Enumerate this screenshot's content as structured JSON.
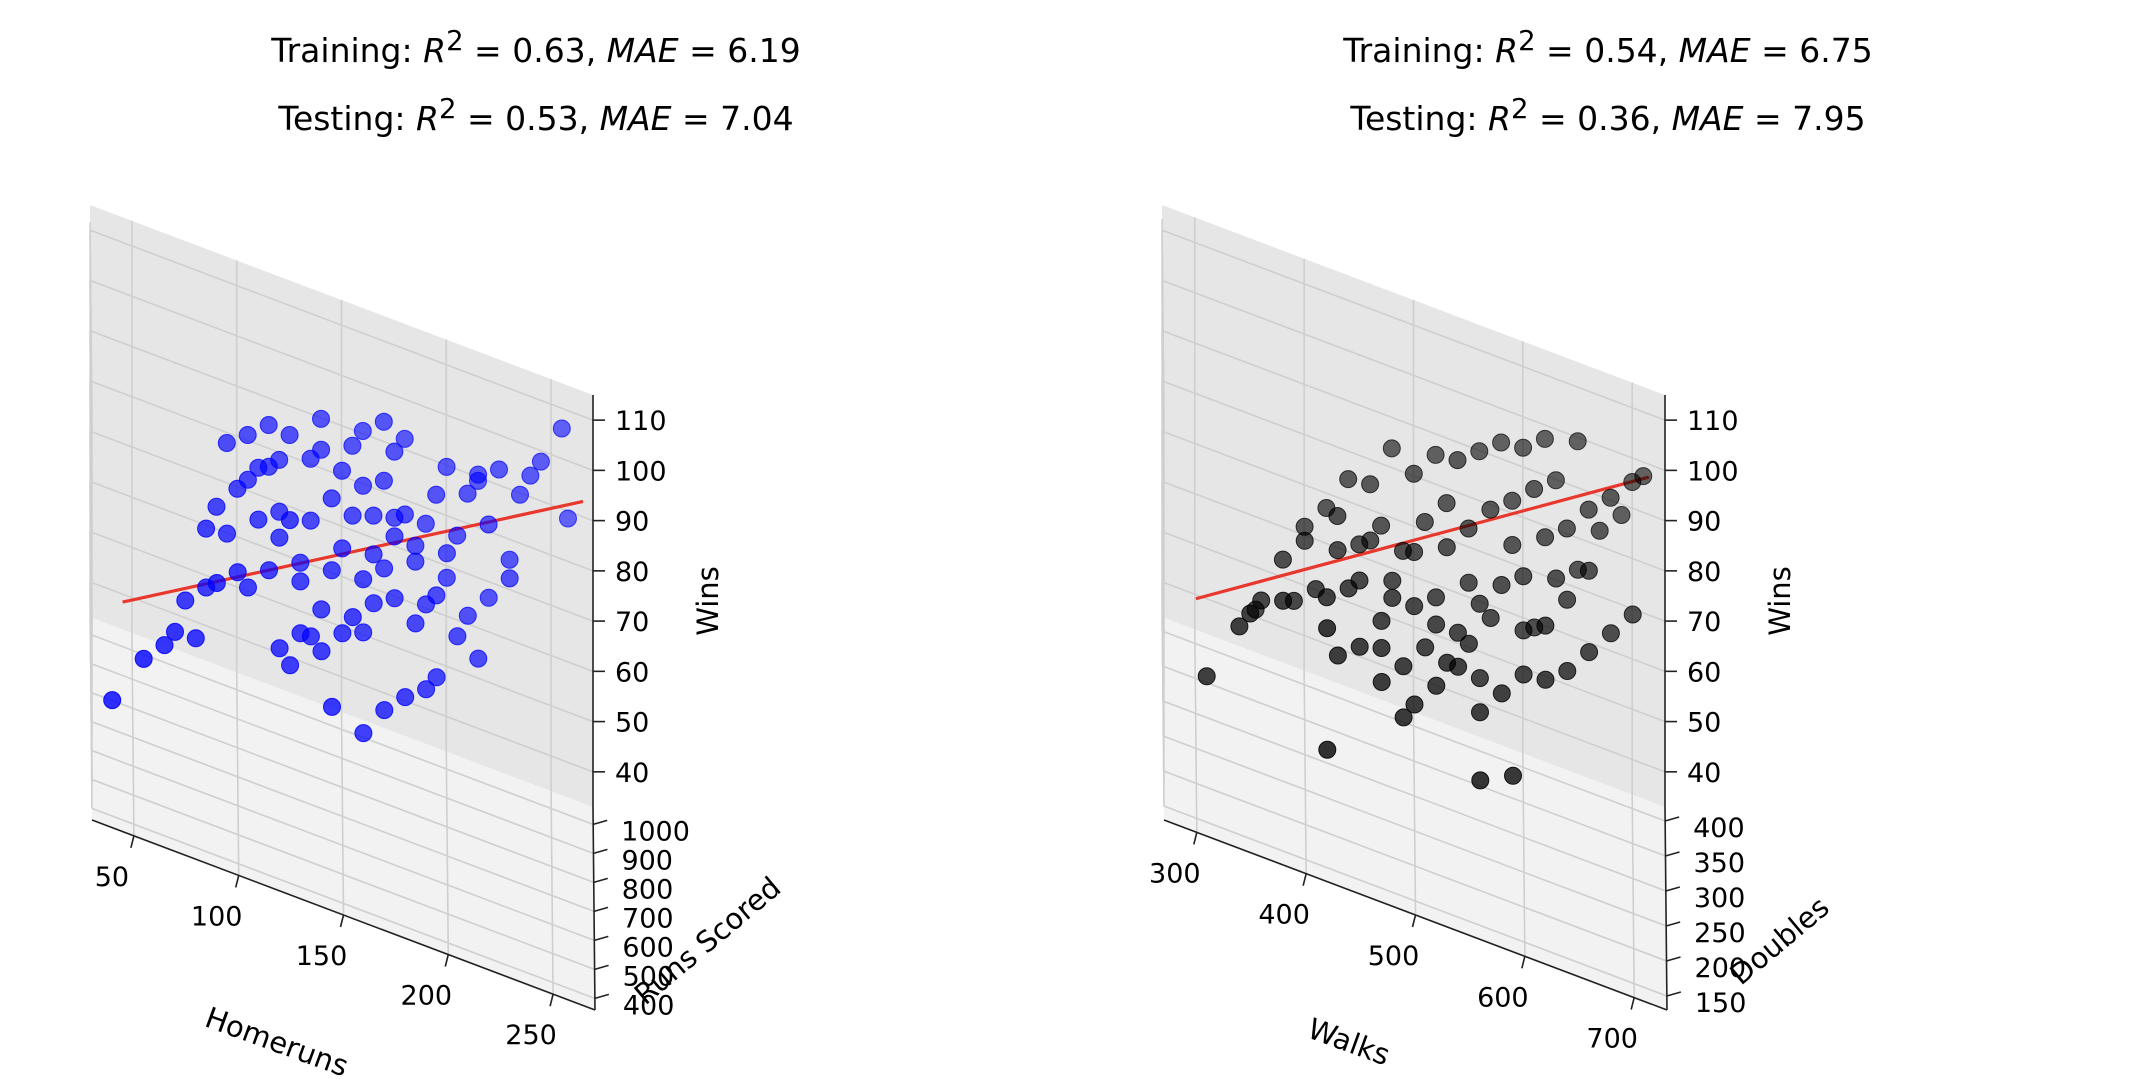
{
  "chart_data": [
    {
      "type": "scatter",
      "subtype": "3d-scatter-with-fitted-line",
      "title": {
        "training": {
          "prefix": "Training: ",
          "r2": "0.63",
          "mae": "6.19"
        },
        "testing": {
          "prefix": "Testing: ",
          "r2": "0.53",
          "mae": "7.04"
        }
      },
      "xlabel": "Homeruns",
      "ylabel": "Runs Scored",
      "zlabel": "Wins",
      "xlim": [
        30,
        270
      ],
      "ylim": [
        360,
        1060
      ],
      "zlim": [
        33,
        115
      ],
      "xticks": [
        "50",
        "100",
        "150",
        "200",
        "250"
      ],
      "yticks": [
        "400",
        "500",
        "600",
        "700",
        "800",
        "900",
        "1000"
      ],
      "zticks": [
        "40",
        "50",
        "60",
        "70",
        "80",
        "90",
        "100",
        "110"
      ],
      "grid": true,
      "marker_color": "#0000ff",
      "line_color": "#e8372c",
      "pane_color": "#f2f2f2",
      "fit_line": {
        "start": [
          45,
          650,
          62
        ],
        "end": [
          265,
          870,
          104
        ]
      },
      "points": [
        [
          40,
          610,
          44
        ],
        [
          55,
          620,
          54
        ],
        [
          65,
          660,
          56
        ],
        [
          70,
          650,
          60
        ],
        [
          80,
          690,
          58
        ],
        [
          75,
          720,
          63
        ],
        [
          90,
          700,
          70
        ],
        [
          85,
          740,
          66
        ],
        [
          100,
          730,
          72
        ],
        [
          95,
          780,
          76
        ],
        [
          105,
          760,
          68
        ],
        [
          110,
          800,
          80
        ],
        [
          115,
          760,
          73
        ],
        [
          120,
          800,
          78
        ],
        [
          125,
          770,
          84
        ],
        [
          130,
          810,
          74
        ],
        [
          105,
          820,
          86
        ],
        [
          115,
          840,
          89
        ],
        [
          120,
          860,
          90
        ],
        [
          135,
          830,
          82
        ],
        [
          140,
          780,
          68
        ],
        [
          145,
          790,
          76
        ],
        [
          150,
          810,
          80
        ],
        [
          155,
          760,
          70
        ],
        [
          160,
          790,
          66
        ],
        [
          165,
          800,
          72
        ],
        [
          170,
          830,
          78
        ],
        [
          175,
          850,
          84
        ],
        [
          140,
          880,
          94
        ],
        [
          150,
          870,
          92
        ],
        [
          155,
          900,
          96
        ],
        [
          160,
          880,
          90
        ],
        [
          165,
          860,
          86
        ],
        [
          170,
          890,
          92
        ],
        [
          175,
          900,
          98
        ],
        [
          180,
          870,
          88
        ],
        [
          185,
          880,
          82
        ],
        [
          190,
          900,
          86
        ],
        [
          195,
          910,
          92
        ],
        [
          200,
          880,
          78
        ],
        [
          205,
          900,
          86
        ],
        [
          210,
          920,
          94
        ],
        [
          215,
          930,
          98
        ],
        [
          220,
          910,
          90
        ],
        [
          225,
          940,
          100
        ],
        [
          230,
          920,
          84
        ],
        [
          235,
          950,
          96
        ],
        [
          240,
          960,
          100
        ],
        [
          245,
          970,
          103
        ],
        [
          255,
          990,
          110
        ],
        [
          258,
          1000,
          92
        ],
        [
          120,
          730,
          60
        ],
        [
          130,
          740,
          64
        ],
        [
          125,
          720,
          58
        ],
        [
          135,
          760,
          63
        ],
        [
          145,
          700,
          54
        ],
        [
          160,
          720,
          50
        ],
        [
          170,
          740,
          55
        ],
        [
          180,
          760,
          58
        ],
        [
          190,
          780,
          60
        ],
        [
          195,
          800,
          62
        ],
        [
          185,
          820,
          70
        ],
        [
          175,
          810,
          74
        ],
        [
          165,
          830,
          80
        ],
        [
          155,
          850,
          85
        ],
        [
          145,
          830,
          88
        ],
        [
          135,
          870,
          92
        ],
        [
          125,
          890,
          94
        ],
        [
          140,
          900,
          99
        ],
        [
          160,
          930,
          98
        ],
        [
          180,
          940,
          99
        ],
        [
          200,
          950,
          96
        ],
        [
          215,
          960,
          95
        ],
        [
          210,
          880,
          72
        ],
        [
          220,
          900,
          76
        ],
        [
          230,
          890,
          82
        ],
        [
          215,
          850,
          66
        ],
        [
          205,
          830,
          70
        ],
        [
          195,
          840,
          76
        ],
        [
          185,
          860,
          80
        ],
        [
          175,
          880,
          86
        ],
        [
          200,
          860,
          84
        ],
        [
          190,
          830,
          74
        ],
        [
          150,
          760,
          66
        ],
        [
          140,
          740,
          62
        ],
        [
          130,
          780,
          72
        ],
        [
          120,
          820,
          82
        ],
        [
          110,
          840,
          88
        ],
        [
          100,
          810,
          84
        ],
        [
          90,
          790,
          80
        ],
        [
          85,
          770,
          76
        ],
        [
          95,
          850,
          90
        ],
        [
          105,
          870,
          92
        ],
        [
          115,
          880,
          95
        ],
        [
          170,
          920,
          102
        ],
        [
          160,
          800,
          76
        ]
      ]
    },
    {
      "type": "scatter",
      "subtype": "3d-scatter-with-fitted-line",
      "title": {
        "training": {
          "prefix": "Training: ",
          "r2": "0.54",
          "mae": "6.75"
        },
        "testing": {
          "prefix": "Testing: ",
          "r2": "0.36",
          "mae": "7.95"
        }
      },
      "xlabel": "Walks",
      "ylabel": "Doubles",
      "zlabel": "Wins",
      "xlim": [
        270,
        730
      ],
      "ylim": [
        130,
        420
      ],
      "zlim": [
        33,
        115
      ],
      "xticks": [
        "300",
        "400",
        "500",
        "600",
        "700"
      ],
      "yticks": [
        "150",
        "200",
        "250",
        "300",
        "350",
        "400"
      ],
      "zticks": [
        "40",
        "50",
        "60",
        "70",
        "80",
        "90",
        "100",
        "110"
      ],
      "grid": true,
      "marker_color": "#000000",
      "line_color": "#e8372c",
      "pane_color": "#f2f2f2",
      "fit_line": {
        "start": [
          300,
          270,
          60
        ],
        "end": [
          715,
          380,
          103
        ]
      },
      "points": [
        [
          310,
          280,
          44
        ],
        [
          340,
          290,
          55
        ],
        [
          350,
          300,
          57
        ],
        [
          360,
          310,
          59
        ],
        [
          355,
          330,
          54
        ],
        [
          390,
          320,
          60
        ],
        [
          420,
          300,
          66
        ],
        [
          440,
          310,
          68
        ],
        [
          430,
          330,
          72
        ],
        [
          450,
          320,
          69
        ],
        [
          470,
          310,
          64
        ],
        [
          460,
          340,
          75
        ],
        [
          480,
          330,
          70
        ],
        [
          500,
          340,
          76
        ],
        [
          490,
          300,
          58
        ],
        [
          510,
          310,
          62
        ],
        [
          520,
          330,
          70
        ],
        [
          530,
          350,
          78
        ],
        [
          540,
          320,
          66
        ],
        [
          550,
          340,
          74
        ],
        [
          560,
          310,
          60
        ],
        [
          570,
          330,
          70
        ],
        [
          580,
          340,
          76
        ],
        [
          590,
          360,
          82
        ],
        [
          600,
          350,
          78
        ],
        [
          610,
          340,
          70
        ],
        [
          620,
          360,
          86
        ],
        [
          630,
          350,
          80
        ],
        [
          640,
          370,
          88
        ],
        [
          650,
          360,
          82
        ],
        [
          660,
          380,
          92
        ],
        [
          670,
          370,
          90
        ],
        [
          680,
          380,
          96
        ],
        [
          690,
          390,
          92
        ],
        [
          700,
          400,
          98
        ],
        [
          710,
          400,
          100
        ],
        [
          420,
          270,
          64
        ],
        [
          430,
          280,
          58
        ],
        [
          450,
          290,
          60
        ],
        [
          470,
          280,
          56
        ],
        [
          490,
          270,
          52
        ],
        [
          500,
          280,
          54
        ],
        [
          520,
          290,
          58
        ],
        [
          540,
          300,
          62
        ],
        [
          560,
          290,
          56
        ],
        [
          580,
          300,
          60
        ],
        [
          600,
          310,
          64
        ],
        [
          620,
          300,
          66
        ],
        [
          640,
          310,
          68
        ],
        [
          660,
          320,
          72
        ],
        [
          680,
          330,
          76
        ],
        [
          700,
          340,
          80
        ],
        [
          400,
          360,
          70
        ],
        [
          420,
          370,
          74
        ],
        [
          440,
          380,
          80
        ],
        [
          460,
          370,
          82
        ],
        [
          480,
          390,
          88
        ],
        [
          500,
          380,
          86
        ],
        [
          520,
          390,
          90
        ],
        [
          540,
          380,
          92
        ],
        [
          560,
          390,
          94
        ],
        [
          580,
          400,
          96
        ],
        [
          600,
          390,
          98
        ],
        [
          620,
          400,
          100
        ],
        [
          450,
          350,
          72
        ],
        [
          470,
          360,
          76
        ],
        [
          490,
          350,
          74
        ],
        [
          510,
          360,
          80
        ],
        [
          530,
          370,
          84
        ],
        [
          550,
          360,
          82
        ],
        [
          570,
          370,
          86
        ],
        [
          590,
          380,
          88
        ],
        [
          610,
          380,
          92
        ],
        [
          630,
          390,
          94
        ],
        [
          650,
          400,
          102
        ],
        [
          380,
          330,
          66
        ],
        [
          400,
          340,
          70
        ],
        [
          410,
          320,
          64
        ],
        [
          430,
          350,
          76
        ],
        [
          480,
          320,
          68
        ],
        [
          520,
          320,
          66
        ],
        [
          560,
          330,
          72
        ],
        [
          600,
          330,
          70
        ],
        [
          640,
          340,
          78
        ],
        [
          660,
          350,
          84
        ],
        [
          560,
          250,
          48
        ],
        [
          590,
          260,
          50
        ],
        [
          420,
          240,
          44
        ],
        [
          470,
          300,
          60
        ],
        [
          500,
          320,
          68
        ],
        [
          530,
          300,
          62
        ],
        [
          550,
          310,
          66
        ],
        [
          620,
          320,
          74
        ],
        [
          380,
          300,
          62
        ]
      ]
    }
  ]
}
